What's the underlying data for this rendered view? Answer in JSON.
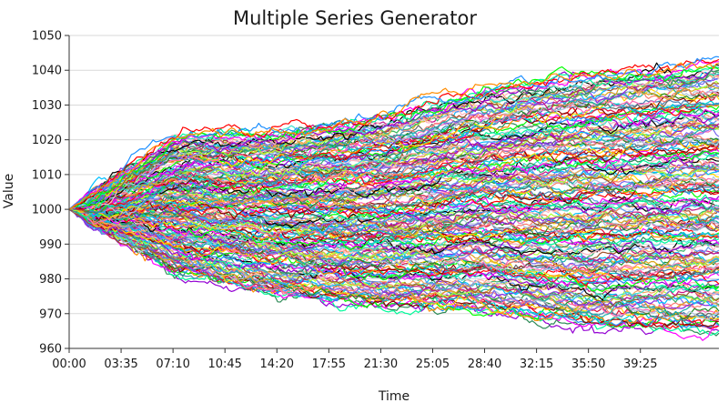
{
  "chart_data": {
    "type": "line",
    "title": "Multiple Series Generator",
    "xlabel": "Time",
    "ylabel": "Value",
    "ylim": [
      960,
      1050
    ],
    "y_ticks": [
      960,
      970,
      980,
      990,
      1000,
      1010,
      1020,
      1030,
      1040,
      1050
    ],
    "x_range_seconds": [
      0,
      2690
    ],
    "x_ticks": [
      "00:00",
      "03:35",
      "07:10",
      "10:45",
      "14:20",
      "17:55",
      "21:30",
      "25:05",
      "28:40",
      "32:15",
      "35:50",
      "39:25"
    ],
    "grid": {
      "horizontal": true,
      "vertical": false
    },
    "legend": "none",
    "series_count": 200,
    "start_value": 1000,
    "series_envelope": {
      "time": [
        "00:00",
        "07:10",
        "14:20",
        "21:30",
        "28:40",
        "35:50",
        "44:50"
      ],
      "max_values": [
        1000,
        1021,
        1023,
        1027,
        1035,
        1040,
        1043
      ],
      "min_values": [
        1000,
        982,
        976,
        972,
        970,
        966,
        965
      ]
    },
    "series_colors": [
      "#9400D3",
      "#2E8B57",
      "#00FA9A",
      "#FF00FF",
      "#00FF00",
      "#FF0000",
      "#1E90FF",
      "#FF8C00",
      "#8B0000",
      "#00CED1",
      "#DC143C",
      "#4682B4",
      "#FFD700",
      "#696969",
      "#FF69B4",
      "#228B22",
      "#B0C4DE",
      "#FA8072",
      "#7B68EE",
      "#20B2AA",
      "#DAA520",
      "#8A2BE2",
      "#00BFFF",
      "#ADFF2F",
      "#A0522D",
      "#C71585",
      "#3CB371",
      "#F4A460",
      "#6495ED",
      "#000000",
      "#FFB6C1",
      "#40E0D0"
    ]
  }
}
